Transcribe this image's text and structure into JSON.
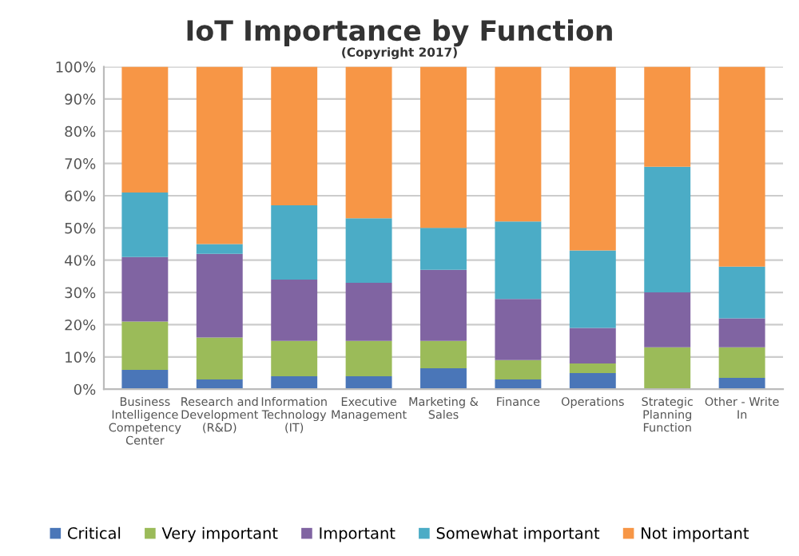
{
  "chart_data": {
    "type": "bar",
    "stacked": true,
    "title": "IoT Importance by Function",
    "subtitle": "(Copyright 2017)",
    "categories": [
      "Business\nIntelligence\nCompetency\nCenter",
      "Research and\nDevelopment\n(R&D)",
      "Information\nTechnology\n(IT)",
      "Executive\nManagement",
      "Marketing &\nSales",
      "Finance",
      "Operations",
      "Strategic\nPlanning\nFunction",
      "Other - Write\nIn"
    ],
    "series": [
      {
        "name": "Critical",
        "color": "#4a76b8",
        "values": [
          6,
          3,
          4,
          4,
          6.5,
          3,
          5,
          0,
          3.5
        ]
      },
      {
        "name": "Very important",
        "color": "#9bbb59",
        "values": [
          15,
          13,
          11,
          11,
          8.5,
          6,
          3,
          13,
          9.5
        ]
      },
      {
        "name": "Important",
        "color": "#8064a2",
        "values": [
          20,
          26,
          19,
          18,
          22,
          19,
          11,
          17,
          9
        ]
      },
      {
        "name": "Somewhat important",
        "color": "#4bacc6",
        "values": [
          20,
          3,
          23,
          20,
          13,
          24,
          24,
          39,
          16
        ]
      },
      {
        "name": "Not important",
        "color": "#f79646",
        "values": [
          39,
          55,
          43,
          47,
          50,
          48,
          57,
          31,
          62
        ]
      }
    ],
    "ylim": [
      0,
      100
    ],
    "yticks": [
      {
        "value": 0,
        "label": "0%"
      },
      {
        "value": 10,
        "label": "10%"
      },
      {
        "value": 20,
        "label": "20%"
      },
      {
        "value": 30,
        "label": "30%"
      },
      {
        "value": 40,
        "label": "40%"
      },
      {
        "value": 50,
        "label": "50%"
      },
      {
        "value": 60,
        "label": "60%"
      },
      {
        "value": 70,
        "label": "70%"
      },
      {
        "value": 80,
        "label": "80%"
      },
      {
        "value": 90,
        "label": "90%"
      },
      {
        "value": 100,
        "label": "100%"
      }
    ],
    "grid": "y",
    "legend": "bottom"
  }
}
